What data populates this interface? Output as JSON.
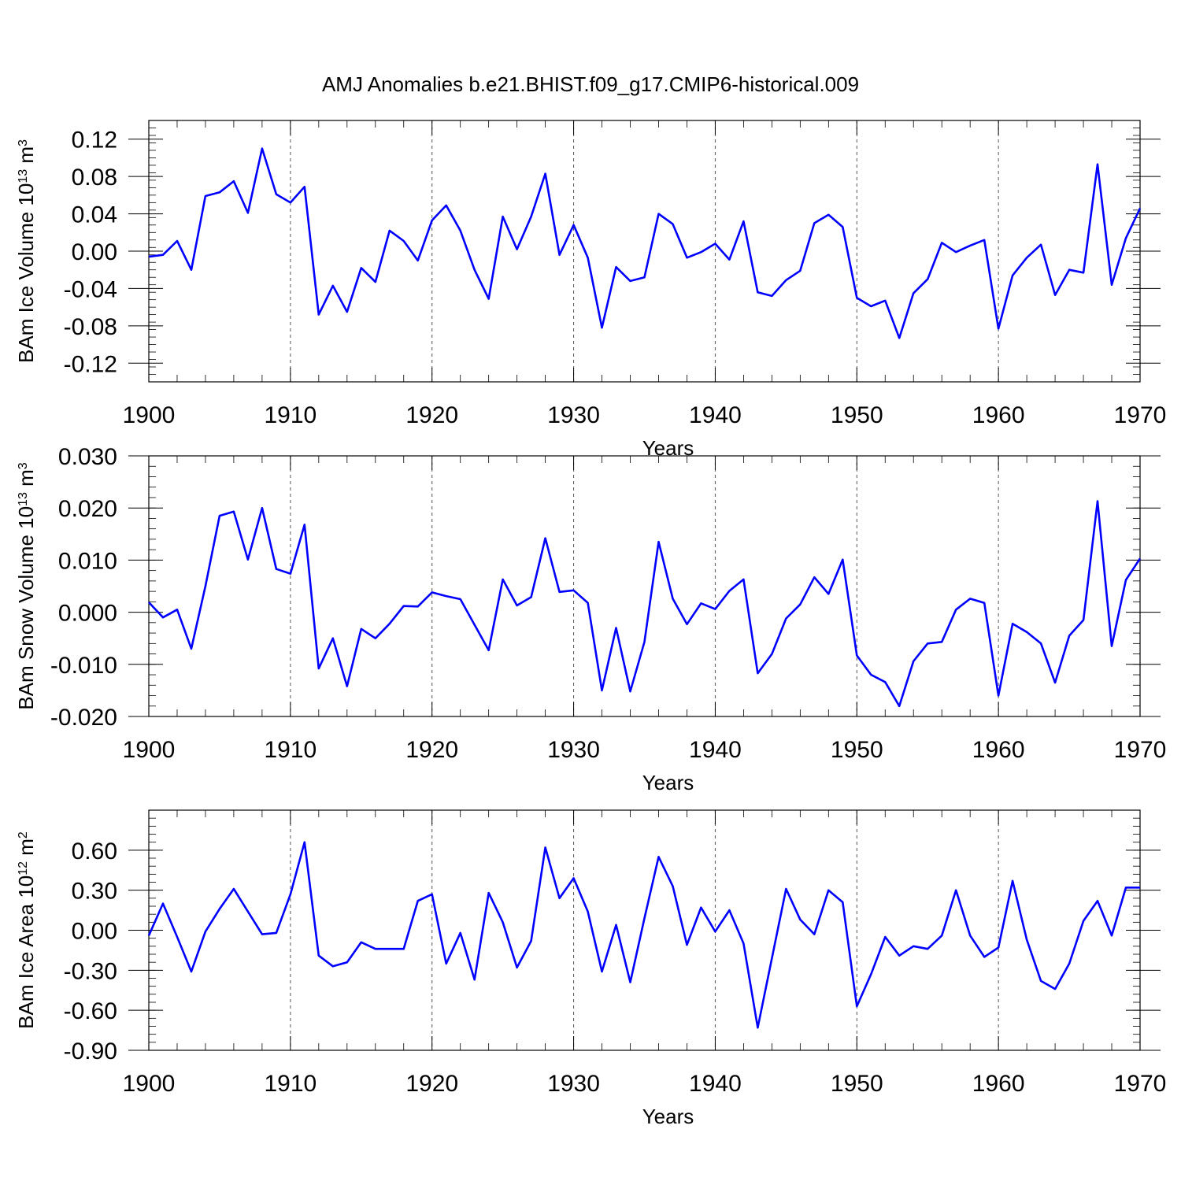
{
  "title": "AMJ Anomalies b.e21.BHIST.f09_g17.CMIP6-historical.009",
  "colors": {
    "line": "#0000ff",
    "axis": "#000000"
  },
  "chart_data": [
    {
      "type": "line",
      "name": "ice-volume",
      "ylabel_main": "BAm Ice Volume 10",
      "ylabel_exp": "13",
      "ylabel_unit": " m",
      "ylabel_unit_exp": "3",
      "xlabel": "Years",
      "xlim": [
        1900,
        1970
      ],
      "ylim": [
        -0.14,
        0.14
      ],
      "x_ticks": [
        1900,
        1910,
        1920,
        1930,
        1940,
        1950,
        1960,
        1970
      ],
      "x_tick_labels": [
        "1900",
        "1910",
        "1920",
        "1930",
        "1940",
        "1950",
        "1960",
        "1970"
      ],
      "y_ticks": [
        -0.12,
        -0.08,
        -0.04,
        0.0,
        0.04,
        0.08,
        0.12
      ],
      "y_tick_labels": [
        "-0.12",
        "-0.08",
        "-0.04",
        "0.00",
        "0.04",
        "0.08",
        "0.12"
      ],
      "x": [
        1900,
        1901,
        1902,
        1903,
        1904,
        1905,
        1906,
        1907,
        1908,
        1909,
        1910,
        1911,
        1912,
        1913,
        1914,
        1915,
        1916,
        1917,
        1918,
        1919,
        1920,
        1921,
        1922,
        1923,
        1924,
        1925,
        1926,
        1927,
        1928,
        1929,
        1930,
        1931,
        1932,
        1933,
        1934,
        1935,
        1936,
        1937,
        1938,
        1939,
        1940,
        1941,
        1942,
        1943,
        1944,
        1945,
        1946,
        1947,
        1948,
        1949,
        1950,
        1951,
        1952,
        1953,
        1954,
        1955,
        1956,
        1957,
        1958,
        1959,
        1960,
        1961,
        1962,
        1963,
        1964,
        1965,
        1966,
        1967,
        1968,
        1969,
        1970
      ],
      "series": [
        {
          "name": "BAm Ice Volume",
          "values": [
            -0.006,
            -0.004,
            0.011,
            -0.02,
            0.059,
            0.063,
            0.075,
            0.041,
            0.11,
            0.061,
            0.052,
            0.069,
            -0.068,
            -0.037,
            -0.065,
            -0.018,
            -0.033,
            0.022,
            0.011,
            -0.01,
            0.033,
            0.049,
            0.022,
            -0.02,
            -0.051,
            0.037,
            0.002,
            0.037,
            0.083,
            -0.004,
            0.028,
            -0.007,
            -0.082,
            -0.017,
            -0.032,
            -0.028,
            0.04,
            0.029,
            -0.007,
            -0.001,
            0.008,
            -0.009,
            0.032,
            -0.044,
            -0.048,
            -0.031,
            -0.021,
            0.03,
            0.039,
            0.026,
            -0.05,
            -0.059,
            -0.053,
            -0.093,
            -0.045,
            -0.03,
            0.009,
            -0.001,
            0.006,
            0.012,
            -0.083,
            -0.026,
            -0.007,
            0.007,
            -0.047,
            -0.02,
            -0.023,
            0.093,
            -0.036,
            0.014,
            0.046
          ]
        }
      ]
    },
    {
      "type": "line",
      "name": "snow-volume",
      "ylabel_main": "BAm Snow Volume 10",
      "ylabel_exp": "13",
      "ylabel_unit": " m",
      "ylabel_unit_exp": "3",
      "xlabel": "Years",
      "xlim": [
        1900,
        1970
      ],
      "ylim": [
        -0.02,
        0.03
      ],
      "x_ticks": [
        1900,
        1910,
        1920,
        1930,
        1940,
        1950,
        1960,
        1970
      ],
      "x_tick_labels": [
        "1900",
        "1910",
        "1920",
        "1930",
        "1940",
        "1950",
        "1960",
        "1970"
      ],
      "y_ticks": [
        -0.02,
        -0.01,
        0.0,
        0.01,
        0.02,
        0.03
      ],
      "y_tick_labels": [
        "-0.020",
        "-0.010",
        "0.000",
        "0.010",
        "0.020",
        "0.030"
      ],
      "x": [
        1900,
        1901,
        1902,
        1903,
        1904,
        1905,
        1906,
        1907,
        1908,
        1909,
        1910,
        1911,
        1912,
        1913,
        1914,
        1915,
        1916,
        1917,
        1918,
        1919,
        1920,
        1921,
        1922,
        1923,
        1924,
        1925,
        1926,
        1927,
        1928,
        1929,
        1930,
        1931,
        1932,
        1933,
        1934,
        1935,
        1936,
        1937,
        1938,
        1939,
        1940,
        1941,
        1942,
        1943,
        1944,
        1945,
        1946,
        1947,
        1948,
        1949,
        1950,
        1951,
        1952,
        1953,
        1954,
        1955,
        1956,
        1957,
        1958,
        1959,
        1960,
        1961,
        1962,
        1963,
        1964,
        1965,
        1966,
        1967,
        1968,
        1969,
        1970
      ],
      "series": [
        {
          "name": "BAm Snow Volume",
          "values": [
            0.0019,
            -0.001,
            0.0005,
            -0.007,
            0.005,
            0.0185,
            0.0193,
            0.0101,
            0.02,
            0.0083,
            0.0074,
            0.0168,
            -0.0108,
            -0.005,
            -0.0142,
            -0.0032,
            -0.005,
            -0.0022,
            0.0012,
            0.0011,
            0.0038,
            0.0031,
            0.0025,
            -0.0024,
            -0.0073,
            0.0063,
            0.0013,
            0.0029,
            0.0142,
            0.0039,
            0.0042,
            0.0018,
            -0.015,
            -0.003,
            -0.0152,
            -0.0057,
            0.0135,
            0.0026,
            -0.0023,
            0.0017,
            0.0006,
            0.0041,
            0.0063,
            -0.0117,
            -0.008,
            -0.0012,
            0.0015,
            0.0067,
            0.0035,
            0.0101,
            -0.0083,
            -0.012,
            -0.0134,
            -0.018,
            -0.0094,
            -0.006,
            -0.0057,
            0.0005,
            0.0026,
            0.0018,
            -0.016,
            -0.0022,
            -0.0038,
            -0.006,
            -0.0135,
            -0.0045,
            -0.0015,
            0.0213,
            -0.0065,
            0.0062,
            0.0103
          ]
        }
      ]
    },
    {
      "type": "line",
      "name": "ice-area",
      "ylabel_main": "BAm Ice Area 10",
      "ylabel_exp": "12",
      "ylabel_unit": " m",
      "ylabel_unit_exp": "2",
      "xlabel": "Years",
      "xlim": [
        1900,
        1970
      ],
      "ylim": [
        -0.9,
        0.9
      ],
      "x_ticks": [
        1900,
        1910,
        1920,
        1930,
        1940,
        1950,
        1960,
        1970
      ],
      "x_tick_labels": [
        "1900",
        "1910",
        "1920",
        "1930",
        "1940",
        "1950",
        "1960",
        "1970"
      ],
      "y_ticks": [
        -0.9,
        -0.6,
        -0.3,
        0.0,
        0.3,
        0.6
      ],
      "y_tick_labels": [
        "-0.90",
        "-0.60",
        "-0.30",
        "0.00",
        "0.30",
        "0.60"
      ],
      "x": [
        1900,
        1901,
        1902,
        1903,
        1904,
        1905,
        1906,
        1907,
        1908,
        1909,
        1910,
        1911,
        1912,
        1913,
        1914,
        1915,
        1916,
        1917,
        1918,
        1919,
        1920,
        1921,
        1922,
        1923,
        1924,
        1925,
        1926,
        1927,
        1928,
        1929,
        1930,
        1931,
        1932,
        1933,
        1934,
        1935,
        1936,
        1937,
        1938,
        1939,
        1940,
        1941,
        1942,
        1943,
        1944,
        1945,
        1946,
        1947,
        1948,
        1949,
        1950,
        1951,
        1952,
        1953,
        1954,
        1955,
        1956,
        1957,
        1958,
        1959,
        1960,
        1961,
        1962,
        1963,
        1964,
        1965,
        1966,
        1967,
        1968,
        1969,
        1970
      ],
      "series": [
        {
          "name": "BAm Ice Area",
          "values": [
            -0.04,
            0.2,
            -0.05,
            -0.31,
            -0.01,
            0.16,
            0.31,
            0.14,
            -0.03,
            -0.02,
            0.27,
            0.66,
            -0.19,
            -0.27,
            -0.24,
            -0.09,
            -0.14,
            -0.14,
            -0.14,
            0.22,
            0.27,
            -0.25,
            -0.02,
            -0.37,
            0.28,
            0.06,
            -0.28,
            -0.08,
            0.62,
            0.24,
            0.39,
            0.14,
            -0.31,
            0.04,
            -0.39,
            0.09,
            0.55,
            0.33,
            -0.11,
            0.17,
            -0.01,
            0.15,
            -0.1,
            -0.73,
            -0.21,
            0.31,
            0.08,
            -0.03,
            0.3,
            0.21,
            -0.57,
            -0.33,
            -0.05,
            -0.19,
            -0.12,
            -0.14,
            -0.04,
            0.3,
            -0.04,
            -0.2,
            -0.13,
            0.37,
            -0.07,
            -0.38,
            -0.44,
            -0.25,
            0.07,
            0.22,
            -0.04,
            0.32,
            0.32
          ]
        }
      ]
    }
  ]
}
